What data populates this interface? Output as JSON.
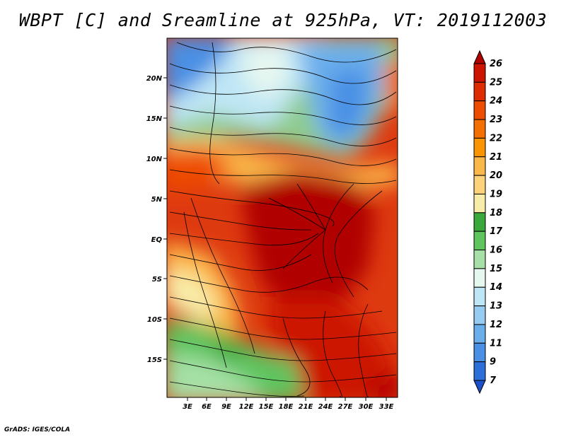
{
  "title": "WBPT [C] and Sreamline at 925hPa, VT: 2019112003",
  "credit": "GrADS: IGES/COLA",
  "lat_ticks": [
    "20N",
    "15N",
    "10N",
    "5N",
    "EQ",
    "5S",
    "10S",
    "15S"
  ],
  "lon_ticks": [
    "3E",
    "6E",
    "9E",
    "12E",
    "15E",
    "18E",
    "21E",
    "24E",
    "27E",
    "30E",
    "33E"
  ],
  "colorbar": {
    "labels": [
      "26",
      "25",
      "24",
      "23",
      "22",
      "21",
      "20",
      "19",
      "18",
      "17",
      "16",
      "15",
      "14",
      "13",
      "12",
      "11",
      "9",
      "7"
    ],
    "colors": [
      "#b00000",
      "#cc1400",
      "#de2c00",
      "#ee4c00",
      "#f56e00",
      "#fa9400",
      "#fbb84a",
      "#fcd27a",
      "#f8eda8",
      "#3aa83a",
      "#5ec45e",
      "#a6e0a6",
      "#e6f7f0",
      "#bfe6f5",
      "#96ccf2",
      "#6aaeec",
      "#4a8fe4",
      "#2e6ed8",
      "#1c50c8"
    ]
  }
}
